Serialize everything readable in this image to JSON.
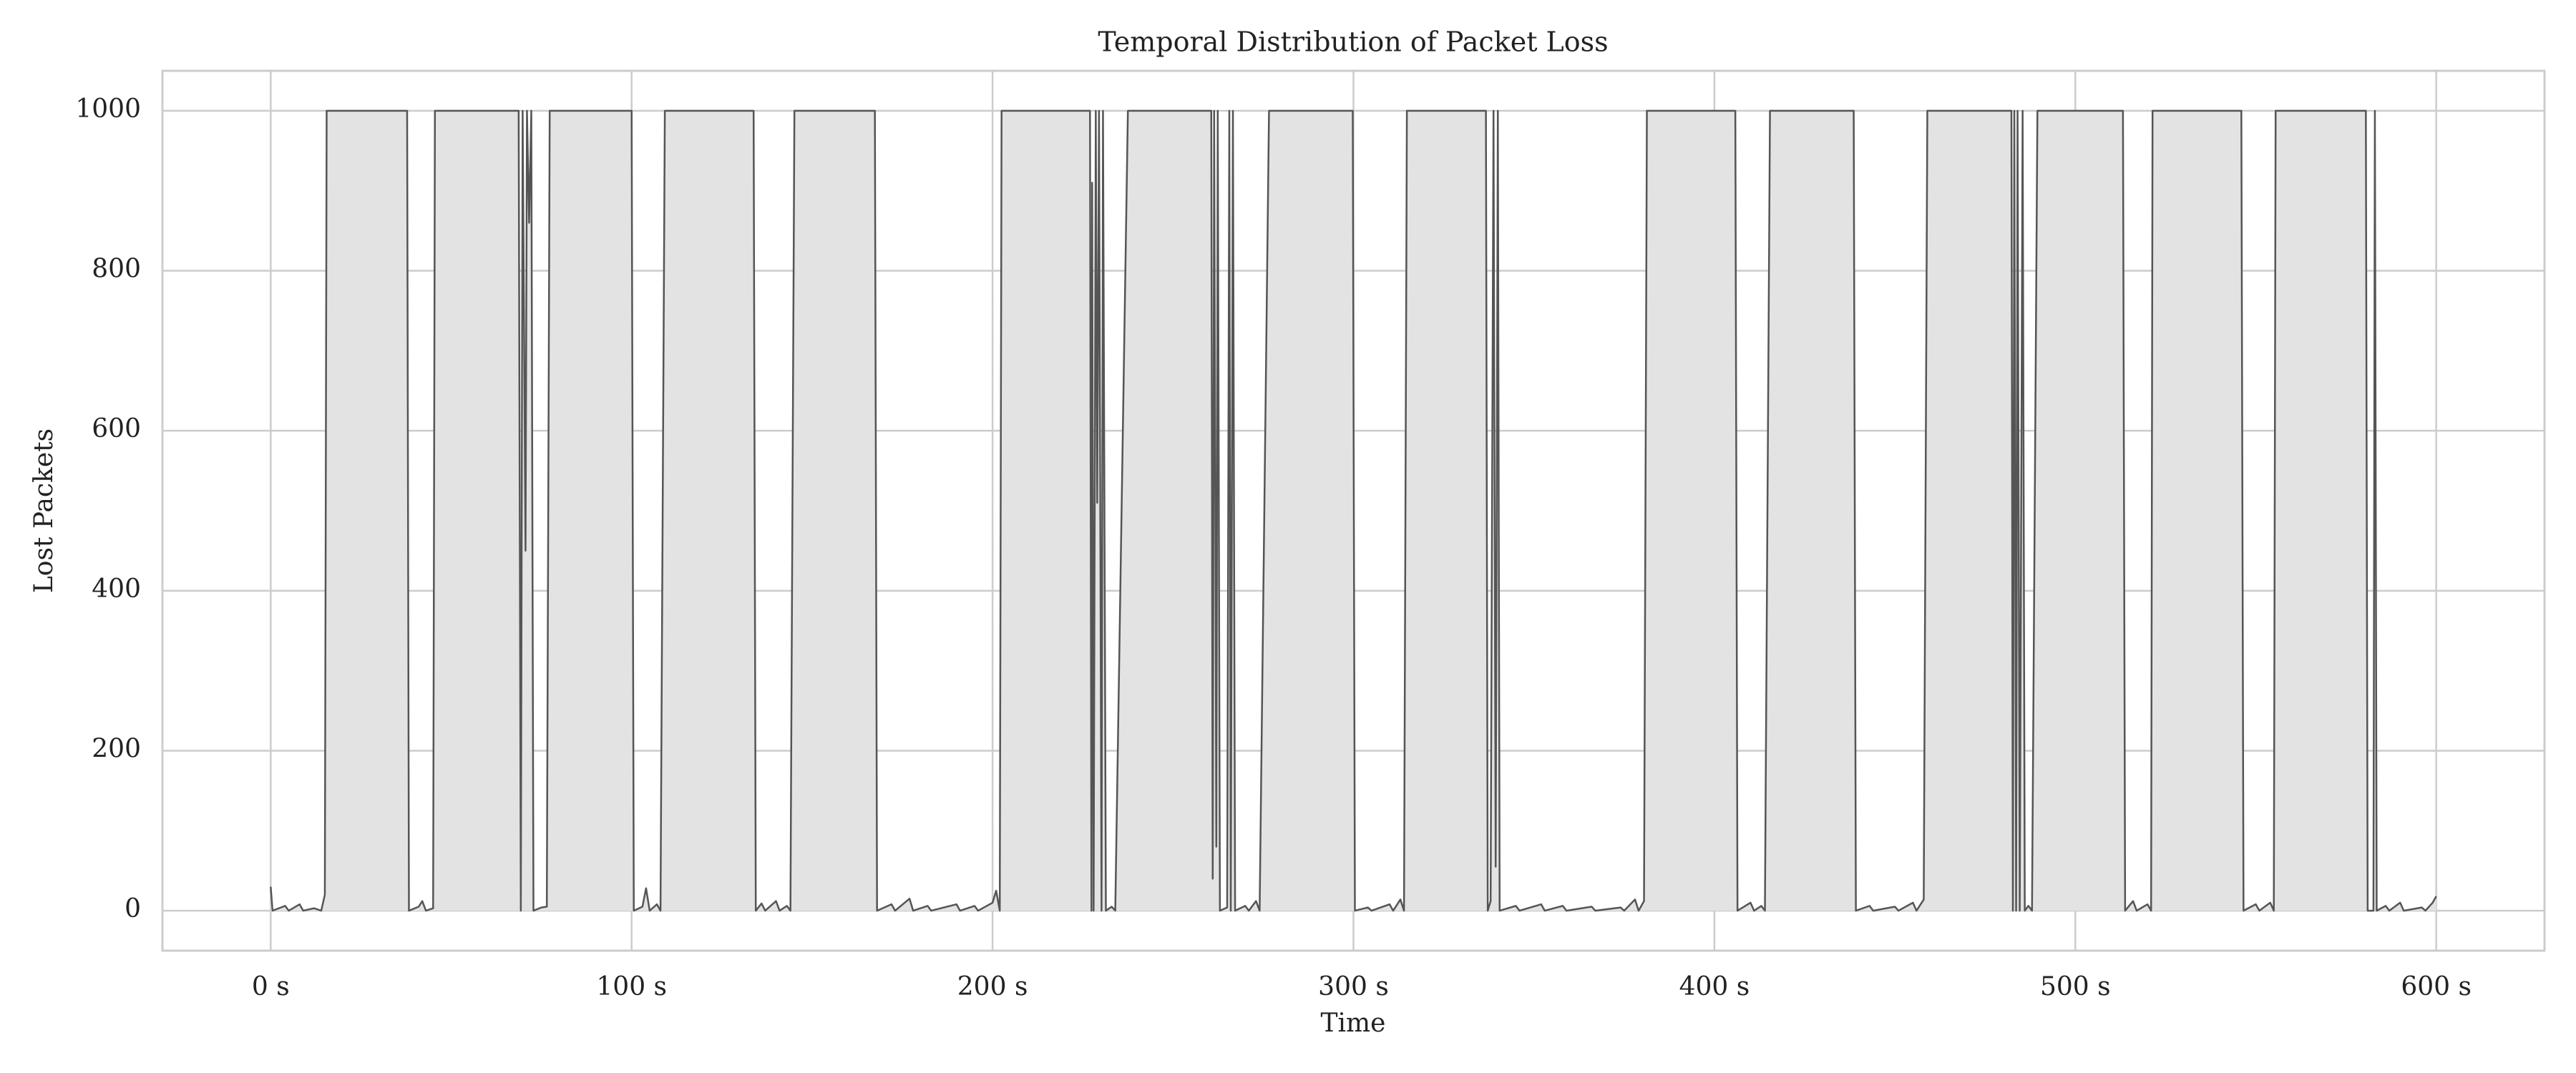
{
  "chart_data": {
    "type": "area",
    "title": "Temporal Distribution of Packet Loss",
    "x_label": "Time",
    "y_label": "Lost Packets",
    "color": "#555555",
    "fill_color": "#e3e3e3",
    "grid": true,
    "xlim": [
      -30,
      630
    ],
    "ylim": [
      -50,
      1050
    ],
    "xticks": [
      {
        "value": 0,
        "label": "0 s"
      },
      {
        "value": 100,
        "label": "100 s"
      },
      {
        "value": 200,
        "label": "200 s"
      },
      {
        "value": 300,
        "label": "300 s"
      },
      {
        "value": 400,
        "label": "400 s"
      },
      {
        "value": 500,
        "label": "500 s"
      },
      {
        "value": 600,
        "label": "600 s"
      }
    ],
    "yticks": [
      0,
      200,
      400,
      600,
      800,
      1000
    ],
    "x": [
      0,
      0.5,
      4,
      5,
      8,
      9,
      12,
      14,
      15,
      15.5,
      37.8,
      38.3,
      41,
      42,
      43,
      45,
      45.5,
      68.7,
      69.3,
      69.8,
      70.6,
      71,
      71.6,
      72.2,
      72.8,
      75,
      76.5,
      77.3,
      100,
      100.6,
      103,
      104,
      105,
      107,
      108,
      109.2,
      133.8,
      134.4,
      136,
      137,
      140,
      141,
      143,
      144,
      145.1,
      167.4,
      168,
      172,
      173,
      177,
      178,
      182,
      183,
      190,
      191,
      195,
      196,
      200,
      201,
      202,
      202.5,
      227,
      227.4,
      227.6,
      228,
      228.6,
      229,
      229.5,
      230.2,
      230.6,
      231.4,
      233,
      234,
      237.5,
      260.6,
      261,
      261.4,
      262,
      262.4,
      263,
      265,
      265.6,
      266,
      266.6,
      267.2,
      270,
      271,
      273,
      274,
      276.6,
      299.8,
      300.4,
      304,
      305,
      310,
      311,
      313,
      314,
      314.8,
      336.7,
      337.2,
      338,
      338.8,
      339.4,
      340,
      340.5,
      345,
      346,
      352,
      353,
      358,
      359,
      366,
      367,
      374,
      375,
      378,
      379,
      380.5,
      381.3,
      405.8,
      406.4,
      410,
      411,
      413,
      414,
      415.4,
      438.6,
      439.2,
      443,
      444,
      450,
      451,
      455,
      456,
      458,
      459,
      482.3,
      482.7,
      483.1,
      483.6,
      484,
      484.6,
      485.4,
      486,
      487,
      488,
      489.5,
      513.2,
      513.8,
      516,
      517,
      520,
      521,
      521.4,
      546,
      546.6,
      550,
      551,
      554,
      555,
      555.5,
      580.5,
      581,
      582.6,
      583,
      583.5,
      586,
      587,
      590,
      591,
      596,
      597,
      599,
      600
    ],
    "values": [
      30,
      0,
      6,
      0,
      8,
      0,
      3,
      0,
      20,
      1000,
      1000,
      0,
      5,
      12,
      0,
      3,
      1000,
      1000,
      0,
      1000,
      450,
      1000,
      860,
      1000,
      0,
      4,
      5,
      1000,
      1000,
      0,
      5,
      28,
      0,
      8,
      0,
      1000,
      1000,
      0,
      9,
      0,
      12,
      0,
      6,
      0,
      1000,
      1000,
      0,
      8,
      0,
      15,
      0,
      6,
      0,
      8,
      0,
      6,
      0,
      10,
      25,
      0,
      1000,
      1000,
      0,
      910,
      0,
      1000,
      510,
      1000,
      0,
      1000,
      0,
      5,
      0,
      1000,
      1000,
      40,
      1000,
      80,
      1000,
      0,
      4,
      1000,
      0,
      1000,
      0,
      6,
      0,
      12,
      0,
      1000,
      1000,
      0,
      4,
      0,
      8,
      0,
      14,
      0,
      1000,
      1000,
      0,
      12,
      1000,
      55,
      1000,
      0,
      6,
      0,
      8,
      0,
      6,
      0,
      5,
      0,
      4,
      0,
      14,
      0,
      12,
      1000,
      1000,
      0,
      10,
      0,
      6,
      0,
      1000,
      1000,
      0,
      6,
      0,
      5,
      0,
      10,
      0,
      14,
      1000,
      1000,
      0,
      1000,
      0,
      1000,
      0,
      1000,
      0,
      6,
      0,
      1000,
      1000,
      0,
      12,
      0,
      8,
      0,
      1000,
      1000,
      0,
      8,
      0,
      10,
      0,
      1000,
      1000,
      0,
      0,
      1000,
      0,
      6,
      0,
      10,
      0,
      4,
      0,
      10,
      18
    ]
  }
}
